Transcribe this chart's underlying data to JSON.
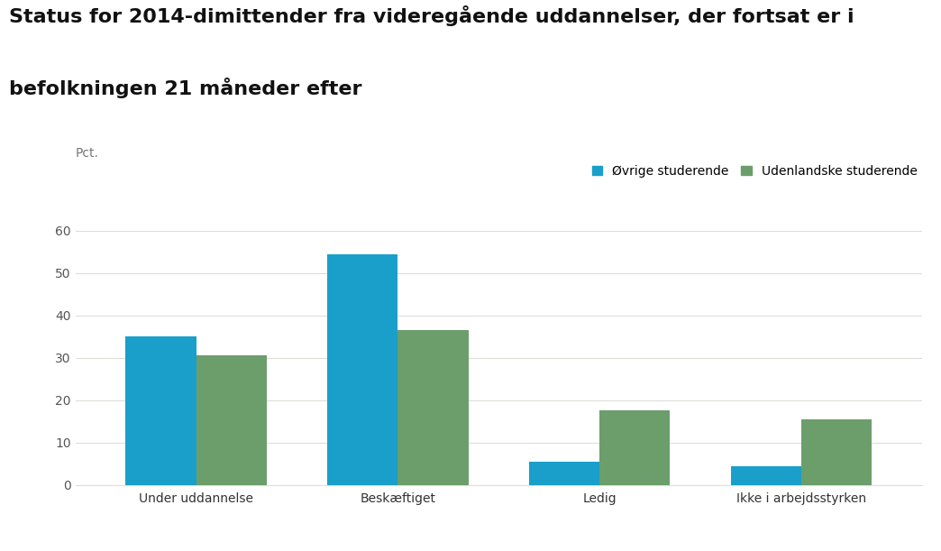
{
  "title_line1": "Status for 2014-dimittender fra videregående uddannelser, der fortsat er i",
  "title_line2": "befolkningen 21 måneder efter",
  "ylabel": "Pct.",
  "categories": [
    "Under uddannelse",
    "Beskæftiget",
    "Ledig",
    "Ikke i arbejdsstyrken"
  ],
  "series": [
    {
      "label": "Øvrige studerende",
      "values": [
        35.0,
        54.5,
        5.5,
        4.5
      ],
      "color": "#1a9fca"
    },
    {
      "label": "Udenlandske studerende",
      "values": [
        30.5,
        36.5,
        17.5,
        15.5
      ],
      "color": "#6b9e6b"
    }
  ],
  "ylim": [
    0,
    65
  ],
  "yticks": [
    0,
    10,
    20,
    30,
    40,
    50,
    60
  ],
  "bar_width": 0.35,
  "background_color": "#ffffff",
  "grid_color": "#e0ddd8",
  "title_fontsize": 16,
  "label_fontsize": 10,
  "tick_fontsize": 10,
  "legend_fontsize": 10
}
